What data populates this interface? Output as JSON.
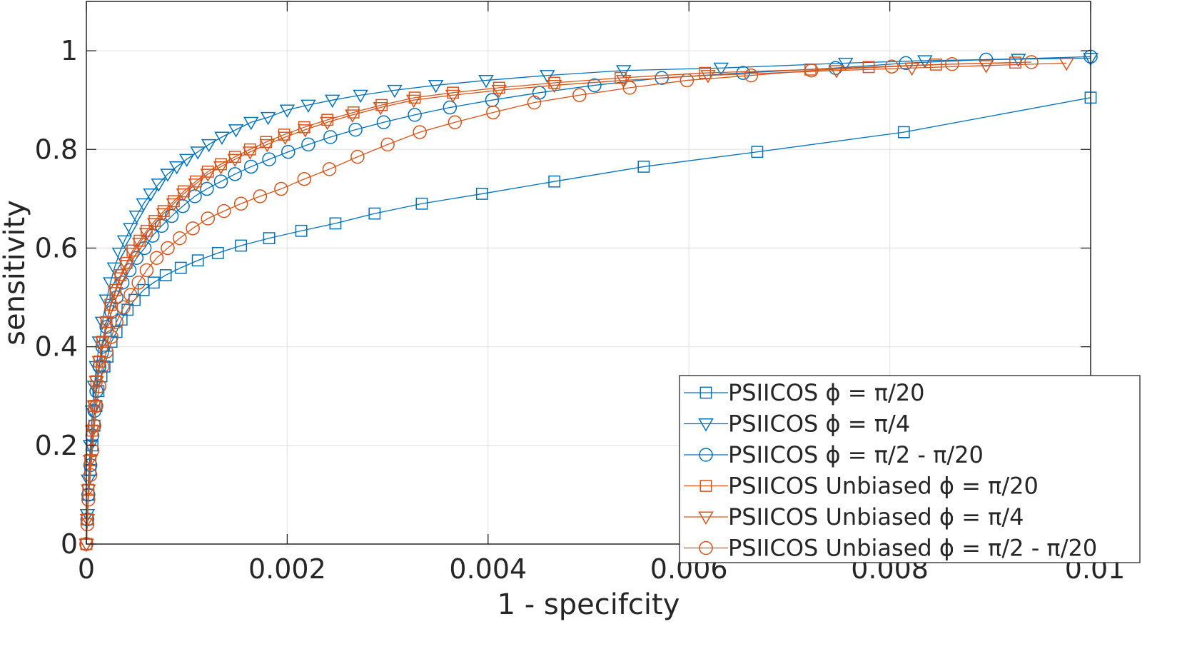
{
  "chart_data": {
    "type": "line",
    "xlabel": "1 - specifcity",
    "ylabel": "sensitivity",
    "xlim": [
      0,
      0.01
    ],
    "ylim": [
      0,
      1.1
    ],
    "xticks": [
      0,
      0.002,
      0.004,
      0.006,
      0.008,
      0.01
    ],
    "xtick_labels": [
      "0",
      "0.002",
      "0.004",
      "0.006",
      "0.008",
      "0.01"
    ],
    "yticks": [
      0,
      0.2,
      0.4,
      0.6,
      0.8,
      1
    ],
    "ytick_labels": [
      "0",
      "0.2",
      "0.4",
      "0.6",
      "0.8",
      "1"
    ],
    "grid": true,
    "legend_position": "bottom-right",
    "series": [
      {
        "name": "PSIICOS ϕ = π/20",
        "color": "#0072BD",
        "marker": "square",
        "x": [
          0,
          1e-05,
          2e-05,
          4e-05,
          6e-05,
          8e-05,
          0.0001,
          0.00012,
          0.00015,
          0.00018,
          0.00021,
          0.00025,
          0.0003,
          0.00035,
          0.00041,
          0.00048,
          0.00057,
          0.00067,
          0.00079,
          0.00094,
          0.00111,
          0.00131,
          0.00154,
          0.00182,
          0.00214,
          0.00248,
          0.00287,
          0.00334,
          0.00394,
          0.00466,
          0.00555,
          0.00668,
          0.00814,
          0.01
        ],
        "y": [
          0,
          0.05,
          0.1,
          0.15,
          0.2,
          0.24,
          0.28,
          0.31,
          0.34,
          0.36,
          0.38,
          0.41,
          0.43,
          0.455,
          0.475,
          0.495,
          0.515,
          0.53,
          0.545,
          0.56,
          0.575,
          0.59,
          0.605,
          0.62,
          0.635,
          0.65,
          0.67,
          0.69,
          0.71,
          0.735,
          0.765,
          0.795,
          0.835,
          0.905
        ]
      },
      {
        "name": "PSIICOS ϕ = π/4",
        "color": "#0072BD",
        "marker": "triangle-down",
        "x": [
          0,
          1e-05,
          2e-05,
          4e-05,
          6e-05,
          8e-05,
          0.0001,
          0.00013,
          0.00016,
          0.0002,
          0.00024,
          0.00028,
          0.00033,
          0.00038,
          0.00044,
          0.0005,
          0.00057,
          0.00064,
          0.00072,
          0.00081,
          0.0009,
          0.001,
          0.00111,
          0.00122,
          0.00135,
          0.00149,
          0.00164,
          0.00181,
          0.002,
          0.00221,
          0.00245,
          0.00273,
          0.00307,
          0.00348,
          0.00398,
          0.00459,
          0.00535,
          0.00632,
          0.00756,
          0.00835,
          0.00928,
          0.01
        ],
        "y": [
          0,
          0.06,
          0.13,
          0.2,
          0.27,
          0.32,
          0.36,
          0.41,
          0.45,
          0.495,
          0.53,
          0.56,
          0.59,
          0.615,
          0.64,
          0.665,
          0.69,
          0.71,
          0.73,
          0.75,
          0.765,
          0.78,
          0.795,
          0.81,
          0.825,
          0.84,
          0.855,
          0.865,
          0.88,
          0.89,
          0.9,
          0.91,
          0.92,
          0.93,
          0.94,
          0.95,
          0.96,
          0.965,
          0.975,
          0.98,
          0.983,
          0.985
        ]
      },
      {
        "name": "PSIICOS ϕ = π/2 - π/20",
        "color": "#0072BD",
        "marker": "circle",
        "x": [
          0,
          1e-05,
          2e-05,
          4e-05,
          6e-05,
          8e-05,
          0.0001,
          0.00013,
          0.00016,
          0.0002,
          0.00025,
          0.0003,
          0.00036,
          0.00043,
          0.0005,
          0.00058,
          0.00066,
          0.00075,
          0.00085,
          0.00096,
          0.00108,
          0.0012,
          0.00134,
          0.00148,
          0.00164,
          0.00182,
          0.00201,
          0.00221,
          0.00243,
          0.00268,
          0.00296,
          0.00327,
          0.00362,
          0.00404,
          0.00451,
          0.00506,
          0.00573,
          0.00654,
          0.00746,
          0.00816,
          0.00896,
          0.01
        ],
        "y": [
          0,
          0.05,
          0.1,
          0.16,
          0.22,
          0.27,
          0.31,
          0.36,
          0.4,
          0.44,
          0.47,
          0.5,
          0.53,
          0.555,
          0.58,
          0.6,
          0.625,
          0.645,
          0.665,
          0.685,
          0.705,
          0.72,
          0.735,
          0.75,
          0.765,
          0.78,
          0.795,
          0.81,
          0.825,
          0.84,
          0.855,
          0.87,
          0.885,
          0.9,
          0.915,
          0.93,
          0.945,
          0.955,
          0.965,
          0.975,
          0.982,
          0.988
        ]
      },
      {
        "name": "PSIICOS Unbiased ϕ = π/20",
        "color": "#D95319",
        "marker": "square",
        "x": [
          0,
          1e-05,
          2e-05,
          4e-05,
          6e-05,
          8e-05,
          0.0001,
          0.00013,
          0.00016,
          0.0002,
          0.00024,
          0.00029,
          0.00034,
          0.0004,
          0.00046,
          0.00053,
          0.0006,
          0.00068,
          0.00077,
          0.00087,
          0.00097,
          0.00109,
          0.00121,
          0.00134,
          0.00148,
          0.00163,
          0.00179,
          0.00197,
          0.00217,
          0.0024,
          0.00266,
          0.00294,
          0.00327,
          0.00365,
          0.00411,
          0.00466,
          0.00532,
          0.00616,
          0.00721,
          0.00779,
          0.00846,
          0.00925
        ],
        "y": [
          0,
          0.05,
          0.11,
          0.17,
          0.23,
          0.28,
          0.33,
          0.37,
          0.41,
          0.45,
          0.485,
          0.515,
          0.545,
          0.57,
          0.595,
          0.615,
          0.635,
          0.655,
          0.675,
          0.695,
          0.715,
          0.735,
          0.755,
          0.77,
          0.785,
          0.8,
          0.815,
          0.83,
          0.845,
          0.86,
          0.875,
          0.89,
          0.905,
          0.915,
          0.925,
          0.935,
          0.945,
          0.955,
          0.962,
          0.967,
          0.972,
          0.976
        ]
      },
      {
        "name": "PSIICOS Unbiased ϕ = π/4",
        "color": "#D95319",
        "marker": "triangle-down",
        "x": [
          0,
          1e-05,
          2e-05,
          4e-05,
          6e-05,
          8e-05,
          0.0001,
          0.00013,
          0.00016,
          0.0002,
          0.00024,
          0.00029,
          0.00034,
          0.0004,
          0.00046,
          0.00053,
          0.0006,
          0.00068,
          0.00077,
          0.00087,
          0.00097,
          0.00109,
          0.00121,
          0.00134,
          0.00148,
          0.00163,
          0.0018,
          0.00198,
          0.00218,
          0.0024,
          0.00265,
          0.00293,
          0.00326,
          0.00365,
          0.00411,
          0.00466,
          0.00535,
          0.00619,
          0.00747,
          0.00822,
          0.00896,
          0.00976
        ],
        "y": [
          0,
          0.05,
          0.11,
          0.17,
          0.23,
          0.28,
          0.33,
          0.37,
          0.41,
          0.45,
          0.48,
          0.51,
          0.54,
          0.565,
          0.59,
          0.61,
          0.63,
          0.65,
          0.67,
          0.69,
          0.71,
          0.73,
          0.75,
          0.765,
          0.78,
          0.795,
          0.81,
          0.825,
          0.84,
          0.855,
          0.87,
          0.885,
          0.9,
          0.91,
          0.92,
          0.93,
          0.94,
          0.95,
          0.96,
          0.965,
          0.97,
          0.975
        ]
      },
      {
        "name": "PSIICOS Unbiased ϕ = π/2 - π/20",
        "color": "#D95319",
        "marker": "circle",
        "x": [
          0,
          1e-05,
          2e-05,
          4e-05,
          6e-05,
          8e-05,
          0.0001,
          0.00013,
          0.00016,
          0.0002,
          0.00025,
          0.0003,
          0.00037,
          0.00044,
          0.00052,
          0.0006,
          0.0007,
          0.00081,
          0.00093,
          0.00106,
          0.00121,
          0.00137,
          0.00154,
          0.00173,
          0.00194,
          0.00217,
          0.00242,
          0.0027,
          0.003,
          0.00332,
          0.00367,
          0.00405,
          0.00446,
          0.00491,
          0.00541,
          0.00598,
          0.00662,
          0.00722,
          0.00802,
          0.00862,
          0.00941
        ],
        "y": [
          0,
          0.04,
          0.09,
          0.14,
          0.19,
          0.24,
          0.28,
          0.32,
          0.36,
          0.39,
          0.42,
          0.45,
          0.48,
          0.505,
          0.53,
          0.555,
          0.58,
          0.6,
          0.62,
          0.64,
          0.66,
          0.675,
          0.69,
          0.705,
          0.72,
          0.74,
          0.76,
          0.785,
          0.81,
          0.835,
          0.855,
          0.875,
          0.895,
          0.91,
          0.925,
          0.94,
          0.95,
          0.96,
          0.968,
          0.973,
          0.977
        ]
      }
    ]
  }
}
